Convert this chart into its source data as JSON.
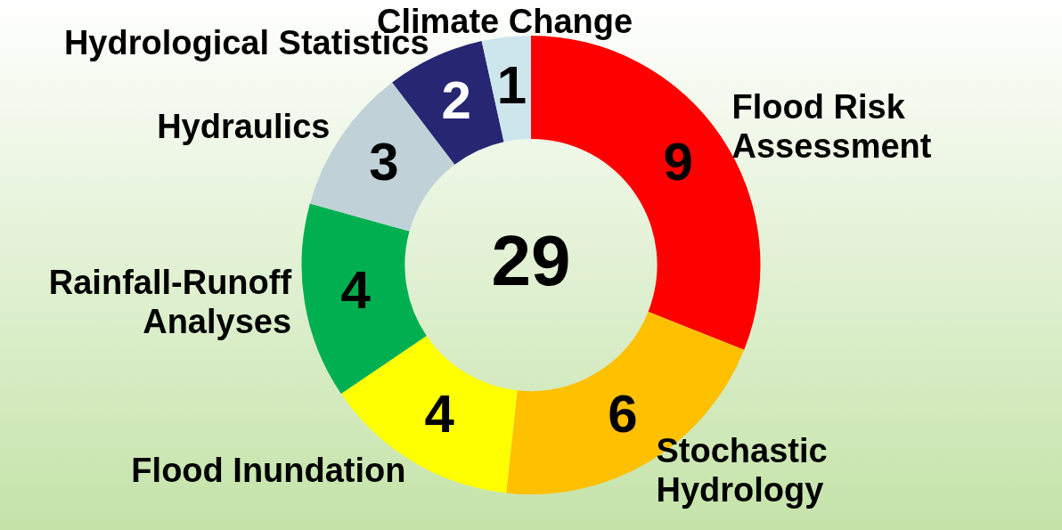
{
  "chart_data": {
    "type": "donut",
    "categories": [
      "Flood Risk Assessment",
      "Stochastic Hydrology",
      "Flood Inundation",
      "Rainfall-Runoff Analyses",
      "Hydraulics",
      "Hydrological Statistics",
      "Climate Change"
    ],
    "values": [
      9,
      6,
      4,
      4,
      3,
      2,
      1
    ],
    "colors": [
      "#ff0000",
      "#ffc000",
      "#ffff00",
      "#00b050",
      "#c0d2d8",
      "#262673",
      "#cde6ec"
    ],
    "data_labels": true,
    "legend": false,
    "annotations": [
      "29"
    ]
  }
}
